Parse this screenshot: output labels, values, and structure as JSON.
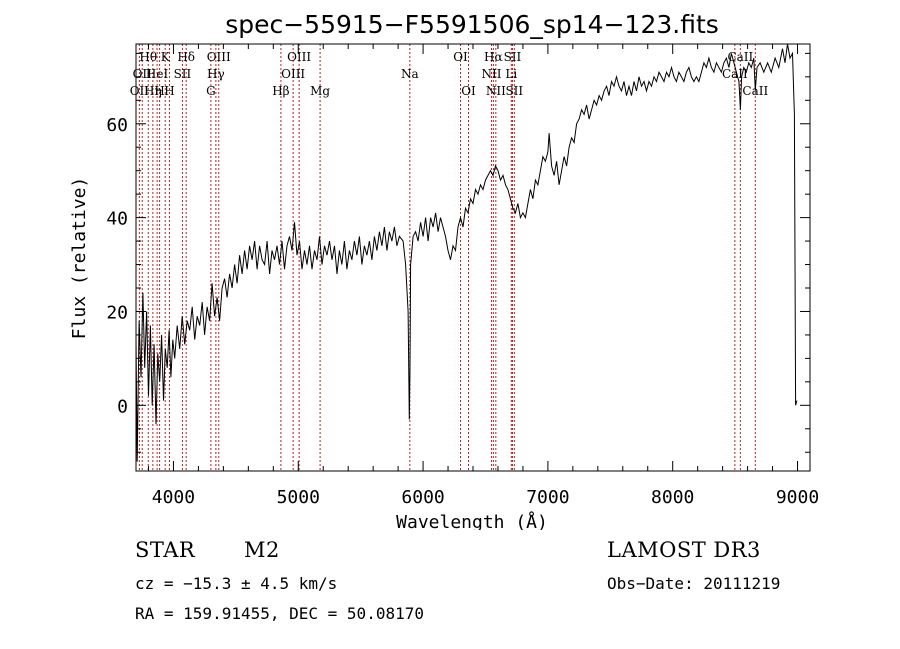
{
  "chart_data": {
    "type": "line",
    "title": "spec−55915−F5591506_sp14−123.fits",
    "xlabel": "Wavelength (Å)",
    "ylabel": "Flux (relative)",
    "xlim": [
      3700,
      9100
    ],
    "ylim": [
      -14,
      77
    ],
    "xticks": [
      4000,
      5000,
      6000,
      7000,
      8000,
      9000
    ],
    "yticks": [
      0,
      20,
      40,
      60
    ],
    "x_minor_step": 200,
    "y_minor_step": 5,
    "series": [
      {
        "name": "spectrum",
        "points": [
          [
            3700,
            14
          ],
          [
            3710,
            -12
          ],
          [
            3725,
            18
          ],
          [
            3740,
            6
          ],
          [
            3755,
            24
          ],
          [
            3770,
            8
          ],
          [
            3785,
            20
          ],
          [
            3800,
            2
          ],
          [
            3815,
            17
          ],
          [
            3830,
            0
          ],
          [
            3845,
            13
          ],
          [
            3860,
            -4
          ],
          [
            3875,
            11
          ],
          [
            3890,
            5
          ],
          [
            3905,
            15
          ],
          [
            3920,
            1
          ],
          [
            3935,
            12
          ],
          [
            3950,
            8
          ],
          [
            3965,
            16
          ],
          [
            3980,
            6
          ],
          [
            3995,
            14
          ],
          [
            4010,
            10
          ],
          [
            4030,
            17
          ],
          [
            4050,
            12
          ],
          [
            4070,
            19
          ],
          [
            4090,
            13
          ],
          [
            4110,
            18
          ],
          [
            4130,
            16
          ],
          [
            4150,
            21
          ],
          [
            4170,
            14
          ],
          [
            4190,
            19
          ],
          [
            4210,
            17
          ],
          [
            4230,
            22
          ],
          [
            4250,
            15
          ],
          [
            4270,
            21
          ],
          [
            4290,
            18
          ],
          [
            4310,
            26
          ],
          [
            4330,
            19
          ],
          [
            4350,
            23
          ],
          [
            4370,
            18
          ],
          [
            4390,
            25
          ],
          [
            4410,
            27
          ],
          [
            4430,
            23
          ],
          [
            4450,
            28
          ],
          [
            4470,
            25
          ],
          [
            4490,
            30
          ],
          [
            4510,
            26
          ],
          [
            4530,
            32
          ],
          [
            4550,
            28
          ],
          [
            4570,
            33
          ],
          [
            4590,
            29
          ],
          [
            4610,
            34
          ],
          [
            4630,
            31
          ],
          [
            4650,
            35
          ],
          [
            4670,
            29
          ],
          [
            4690,
            34
          ],
          [
            4710,
            31
          ],
          [
            4730,
            30
          ],
          [
            4750,
            35
          ],
          [
            4770,
            28
          ],
          [
            4790,
            33
          ],
          [
            4810,
            31
          ],
          [
            4830,
            34
          ],
          [
            4850,
            30
          ],
          [
            4870,
            35
          ],
          [
            4890,
            29
          ],
          [
            4910,
            34
          ],
          [
            4930,
            36
          ],
          [
            4950,
            33
          ],
          [
            4970,
            39
          ],
          [
            4990,
            32
          ],
          [
            5010,
            35
          ],
          [
            5030,
            29
          ],
          [
            5050,
            33
          ],
          [
            5070,
            30
          ],
          [
            5090,
            34
          ],
          [
            5110,
            29
          ],
          [
            5130,
            33
          ],
          [
            5150,
            31
          ],
          [
            5170,
            36
          ],
          [
            5190,
            30
          ],
          [
            5210,
            34
          ],
          [
            5230,
            32
          ],
          [
            5250,
            35
          ],
          [
            5270,
            31
          ],
          [
            5290,
            34
          ],
          [
            5310,
            28
          ],
          [
            5330,
            33
          ],
          [
            5350,
            30
          ],
          [
            5370,
            35
          ],
          [
            5390,
            29
          ],
          [
            5410,
            33
          ],
          [
            5430,
            31
          ],
          [
            5450,
            35
          ],
          [
            5470,
            32
          ],
          [
            5490,
            36
          ],
          [
            5510,
            30
          ],
          [
            5530,
            34
          ],
          [
            5550,
            32
          ],
          [
            5570,
            35
          ],
          [
            5590,
            31
          ],
          [
            5610,
            36
          ],
          [
            5630,
            33
          ],
          [
            5650,
            37
          ],
          [
            5670,
            34
          ],
          [
            5690,
            38
          ],
          [
            5710,
            33
          ],
          [
            5730,
            37
          ],
          [
            5750,
            35
          ],
          [
            5770,
            38
          ],
          [
            5790,
            34
          ],
          [
            5810,
            36
          ],
          [
            5840,
            35
          ],
          [
            5860,
            30
          ],
          [
            5880,
            20
          ],
          [
            5890,
            -3
          ],
          [
            5895,
            8
          ],
          [
            5900,
            30
          ],
          [
            5920,
            36
          ],
          [
            5940,
            37
          ],
          [
            5960,
            35
          ],
          [
            5980,
            39
          ],
          [
            6000,
            36
          ],
          [
            6020,
            40
          ],
          [
            6040,
            35
          ],
          [
            6060,
            40
          ],
          [
            6080,
            38
          ],
          [
            6100,
            41
          ],
          [
            6120,
            37
          ],
          [
            6140,
            40
          ],
          [
            6160,
            38
          ],
          [
            6180,
            36
          ],
          [
            6200,
            33
          ],
          [
            6220,
            31
          ],
          [
            6240,
            34
          ],
          [
            6260,
            33
          ],
          [
            6280,
            38
          ],
          [
            6300,
            40
          ],
          [
            6320,
            38
          ],
          [
            6340,
            42
          ],
          [
            6360,
            41
          ],
          [
            6380,
            44
          ],
          [
            6400,
            43
          ],
          [
            6420,
            46
          ],
          [
            6440,
            45
          ],
          [
            6460,
            47
          ],
          [
            6480,
            46
          ],
          [
            6500,
            48
          ],
          [
            6520,
            49
          ],
          [
            6540,
            50
          ],
          [
            6560,
            49
          ],
          [
            6580,
            51
          ],
          [
            6600,
            50
          ],
          [
            6620,
            48
          ],
          [
            6640,
            49
          ],
          [
            6660,
            47
          ],
          [
            6680,
            46
          ],
          [
            6700,
            44
          ],
          [
            6720,
            42
          ],
          [
            6740,
            41
          ],
          [
            6760,
            43
          ],
          [
            6780,
            40
          ],
          [
            6800,
            41
          ],
          [
            6820,
            40
          ],
          [
            6840,
            43
          ],
          [
            6860,
            46
          ],
          [
            6880,
            44
          ],
          [
            6900,
            48
          ],
          [
            6920,
            47
          ],
          [
            6940,
            50
          ],
          [
            6960,
            53
          ],
          [
            6980,
            52
          ],
          [
            7000,
            54
          ],
          [
            7010,
            58
          ],
          [
            7030,
            51
          ],
          [
            7050,
            49
          ],
          [
            7070,
            52
          ],
          [
            7090,
            47
          ],
          [
            7110,
            50
          ],
          [
            7130,
            53
          ],
          [
            7150,
            51
          ],
          [
            7170,
            55
          ],
          [
            7190,
            57
          ],
          [
            7210,
            56
          ],
          [
            7230,
            60
          ],
          [
            7250,
            61
          ],
          [
            7270,
            63
          ],
          [
            7290,
            62
          ],
          [
            7310,
            64
          ],
          [
            7330,
            61
          ],
          [
            7350,
            63
          ],
          [
            7370,
            65
          ],
          [
            7390,
            64
          ],
          [
            7410,
            66
          ],
          [
            7430,
            65
          ],
          [
            7450,
            67
          ],
          [
            7470,
            68
          ],
          [
            7490,
            66
          ],
          [
            7510,
            69
          ],
          [
            7530,
            68
          ],
          [
            7550,
            70
          ],
          [
            7570,
            68
          ],
          [
            7590,
            67
          ],
          [
            7610,
            69
          ],
          [
            7630,
            66
          ],
          [
            7650,
            68
          ],
          [
            7670,
            66
          ],
          [
            7690,
            69
          ],
          [
            7710,
            67
          ],
          [
            7730,
            70
          ],
          [
            7750,
            68
          ],
          [
            7770,
            69
          ],
          [
            7790,
            67
          ],
          [
            7810,
            69
          ],
          [
            7830,
            68
          ],
          [
            7850,
            70
          ],
          [
            7870,
            69
          ],
          [
            7890,
            71
          ],
          [
            7910,
            70
          ],
          [
            7930,
            69
          ],
          [
            7950,
            71
          ],
          [
            7970,
            70
          ],
          [
            7990,
            72
          ],
          [
            8010,
            70
          ],
          [
            8030,
            69
          ],
          [
            8050,
            71
          ],
          [
            8070,
            70
          ],
          [
            8090,
            69
          ],
          [
            8110,
            71
          ],
          [
            8130,
            72
          ],
          [
            8150,
            70
          ],
          [
            8170,
            69
          ],
          [
            8190,
            70
          ],
          [
            8210,
            69
          ],
          [
            8230,
            71
          ],
          [
            8250,
            73
          ],
          [
            8270,
            72
          ],
          [
            8290,
            74
          ],
          [
            8310,
            72
          ],
          [
            8330,
            71
          ],
          [
            8350,
            73
          ],
          [
            8370,
            72
          ],
          [
            8390,
            71
          ],
          [
            8410,
            73
          ],
          [
            8430,
            74
          ],
          [
            8450,
            72
          ],
          [
            8470,
            75
          ],
          [
            8490,
            73
          ],
          [
            8510,
            71
          ],
          [
            8530,
            69
          ],
          [
            8542,
            63
          ],
          [
            8552,
            70
          ],
          [
            8570,
            72
          ],
          [
            8590,
            71
          ],
          [
            8610,
            73
          ],
          [
            8630,
            72
          ],
          [
            8650,
            74
          ],
          [
            8662,
            67
          ],
          [
            8675,
            72
          ],
          [
            8700,
            73
          ],
          [
            8730,
            71
          ],
          [
            8760,
            73
          ],
          [
            8790,
            71
          ],
          [
            8820,
            74
          ],
          [
            8850,
            72
          ],
          [
            8880,
            76
          ],
          [
            8900,
            73
          ],
          [
            8920,
            77
          ],
          [
            8940,
            74
          ],
          [
            8960,
            75
          ],
          [
            8975,
            62
          ],
          [
            8985,
            0
          ],
          [
            8995,
            1
          ]
        ]
      }
    ],
    "lines": [
      {
        "wl": 3727,
        "label": "OII",
        "row": 2
      },
      {
        "wl": 3750,
        "label": "OII",
        "row": 1
      },
      {
        "wl": 3798,
        "label": "Hθ",
        "row": 0
      },
      {
        "wl": 3835,
        "label": "Hη",
        "row": 2
      },
      {
        "wl": 3869,
        "label": "HeI",
        "row": 1
      },
      {
        "wl": 3889,
        "label": "H",
        "row": 2
      },
      {
        "wl": 3934,
        "label": "K",
        "row": 0
      },
      {
        "wl": 3968,
        "label": "H",
        "row": 2
      },
      {
        "wl": 4072,
        "label": "SII",
        "row": 1
      },
      {
        "wl": 4102,
        "label": "Hδ",
        "row": 0
      },
      {
        "wl": 4300,
        "label": "G",
        "row": 2
      },
      {
        "wl": 4340,
        "label": "Hγ",
        "row": 1
      },
      {
        "wl": 4363,
        "label": "OIII",
        "row": 0
      },
      {
        "wl": 4861,
        "label": "Hβ",
        "row": 2
      },
      {
        "wl": 4959,
        "label": "OIII",
        "row": 1
      },
      {
        "wl": 5007,
        "label": "OIII",
        "row": 0
      },
      {
        "wl": 5175,
        "label": "Mg",
        "row": 2
      },
      {
        "wl": 5894,
        "label": "Na",
        "row": 1
      },
      {
        "wl": 6300,
        "label": "OI",
        "row": 0
      },
      {
        "wl": 6364,
        "label": "OI",
        "row": 2
      },
      {
        "wl": 6548,
        "label": "NII",
        "row": 1
      },
      {
        "wl": 6563,
        "label": "Hα",
        "row": 0
      },
      {
        "wl": 6583,
        "label": "NII",
        "row": 2
      },
      {
        "wl": 6707,
        "label": "Li",
        "row": 1
      },
      {
        "wl": 6716,
        "label": "SII",
        "row": 0
      },
      {
        "wl": 6731,
        "label": "SII",
        "row": 2
      },
      {
        "wl": 8498,
        "label": "CaII",
        "row": 1
      },
      {
        "wl": 8542,
        "label": "CaII",
        "row": 0
      },
      {
        "wl": 8662,
        "label": "CaII",
        "row": 2
      }
    ]
  },
  "info": {
    "object_type": "STAR",
    "subclass": "M2",
    "survey": "LAMOST DR3",
    "cz": "cz = −15.3 ± 4.5 km/s",
    "obs_date": "Obs−Date: 20111219",
    "coords": "RA = 159.91455, DEC =  50.08170"
  },
  "colors": {
    "line_marker": "#b22222",
    "spectrum": "#000000"
  }
}
